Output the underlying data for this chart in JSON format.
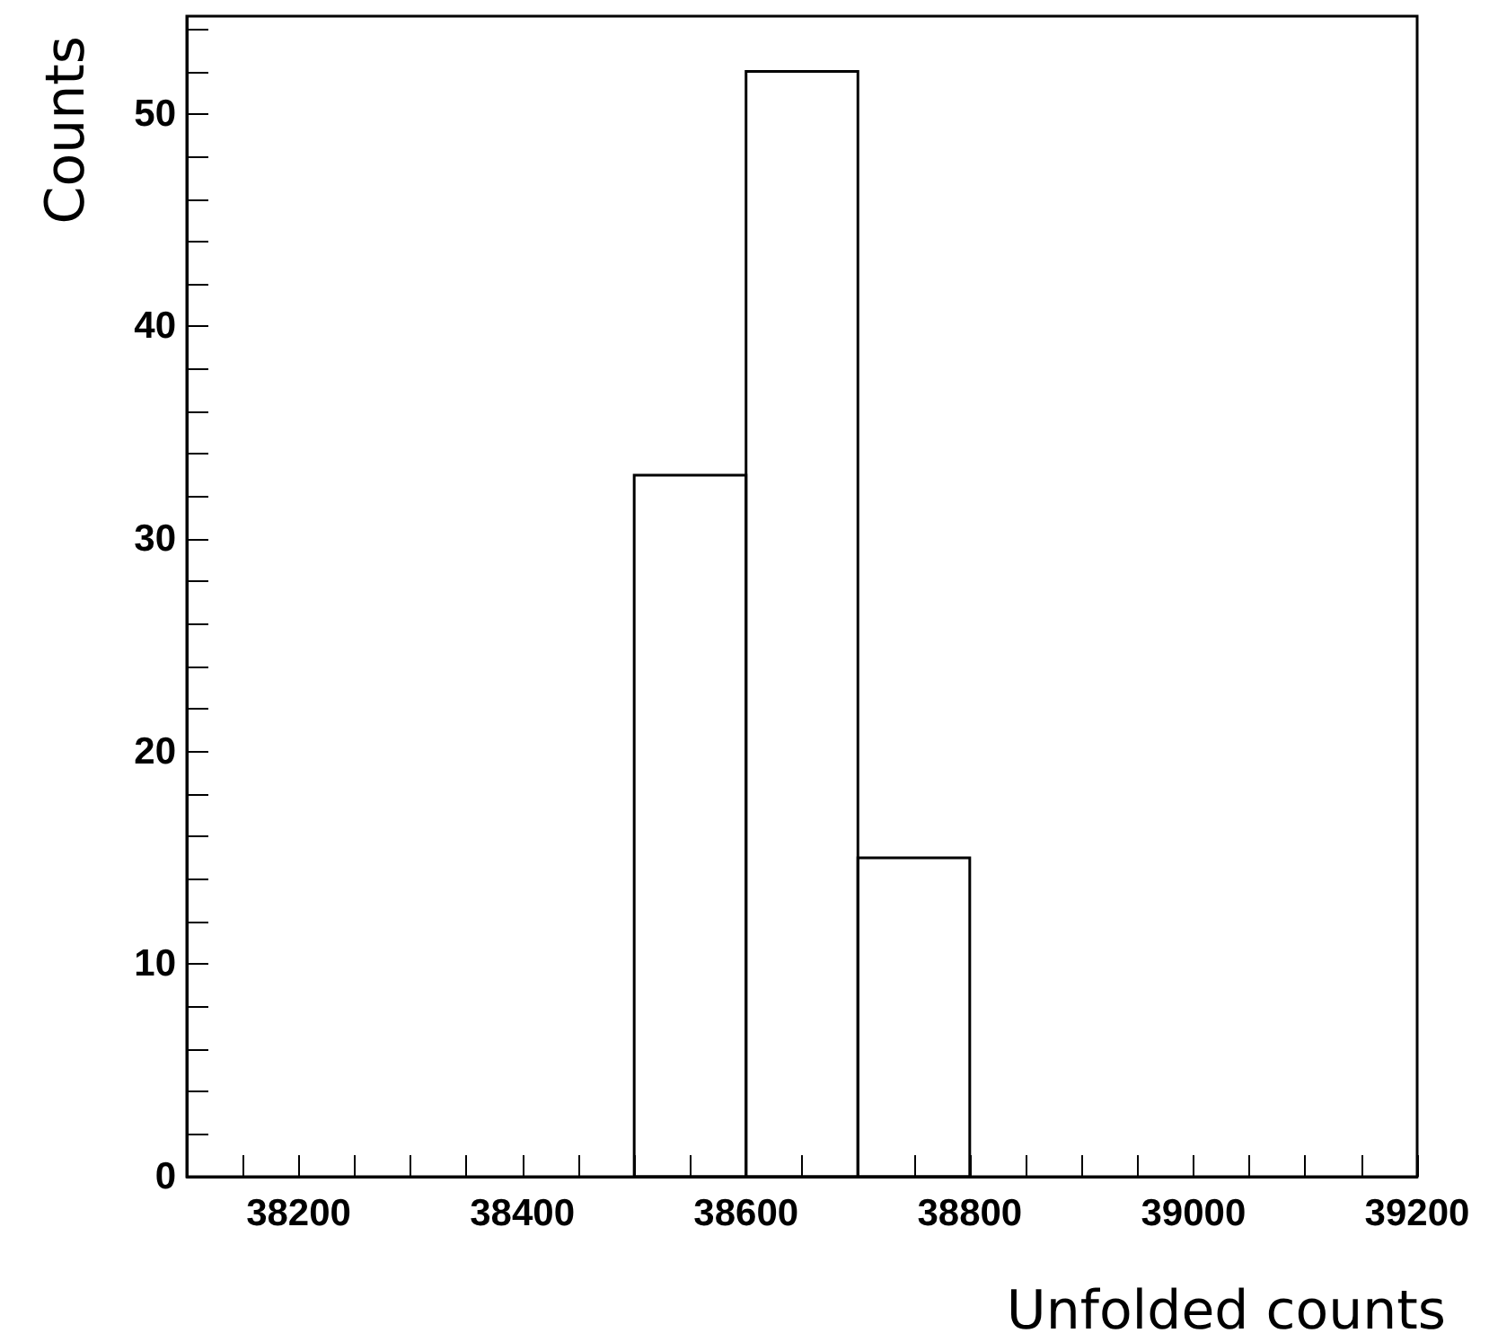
{
  "chart_data": {
    "type": "histogram",
    "xlabel": "Unfolded counts",
    "ylabel": "Counts",
    "bins": [
      38500,
      38600,
      38700,
      38800
    ],
    "values": [
      33,
      52,
      15
    ],
    "color": "#000000",
    "xlim": [
      38100,
      39200
    ],
    "xticks": [
      {
        "value": 38150,
        "label": null
      },
      38200,
      {
        "value": 38250,
        "label": null
      },
      {
        "value": 38300,
        "label": null
      },
      {
        "value": 38350,
        "label": null
      },
      38400,
      {
        "value": 38450,
        "label": null
      },
      {
        "value": 38500,
        "label": null
      },
      {
        "value": 38550,
        "label": null
      },
      38600,
      {
        "value": 38650,
        "label": null
      },
      {
        "value": 38700,
        "label": null
      },
      {
        "value": 38750,
        "label": null
      },
      38800,
      {
        "value": 38850,
        "label": null
      },
      {
        "value": 38900,
        "label": null
      },
      {
        "value": 38950,
        "label": null
      },
      39000,
      {
        "value": 39050,
        "label": null
      },
      {
        "value": 39100,
        "label": null
      },
      {
        "value": 39150,
        "label": null
      },
      39200
    ],
    "ylim": [
      0,
      54.6
    ],
    "yticks": [
      0,
      {
        "value": 2,
        "label": null
      },
      {
        "value": 4,
        "label": null
      },
      {
        "value": 6,
        "label": null
      },
      {
        "value": 8,
        "label": null
      },
      10,
      {
        "value": 12,
        "label": null
      },
      {
        "value": 14,
        "label": null
      },
      {
        "value": 16,
        "label": null
      },
      {
        "value": 18,
        "label": null
      },
      20,
      {
        "value": 22,
        "label": null
      },
      {
        "value": 24,
        "label": null
      },
      {
        "value": 26,
        "label": null
      },
      {
        "value": 28,
        "label": null
      },
      30,
      {
        "value": 32,
        "label": null
      },
      {
        "value": 34,
        "label": null
      },
      {
        "value": 36,
        "label": null
      },
      {
        "value": 38,
        "label": null
      },
      40,
      {
        "value": 42,
        "label": null
      },
      {
        "value": 44,
        "label": null
      },
      {
        "value": 46,
        "label": null
      },
      {
        "value": 48,
        "label": null
      },
      50,
      {
        "value": 52,
        "label": null
      },
      {
        "value": 54,
        "label": null
      }
    ],
    "grid": false
  }
}
